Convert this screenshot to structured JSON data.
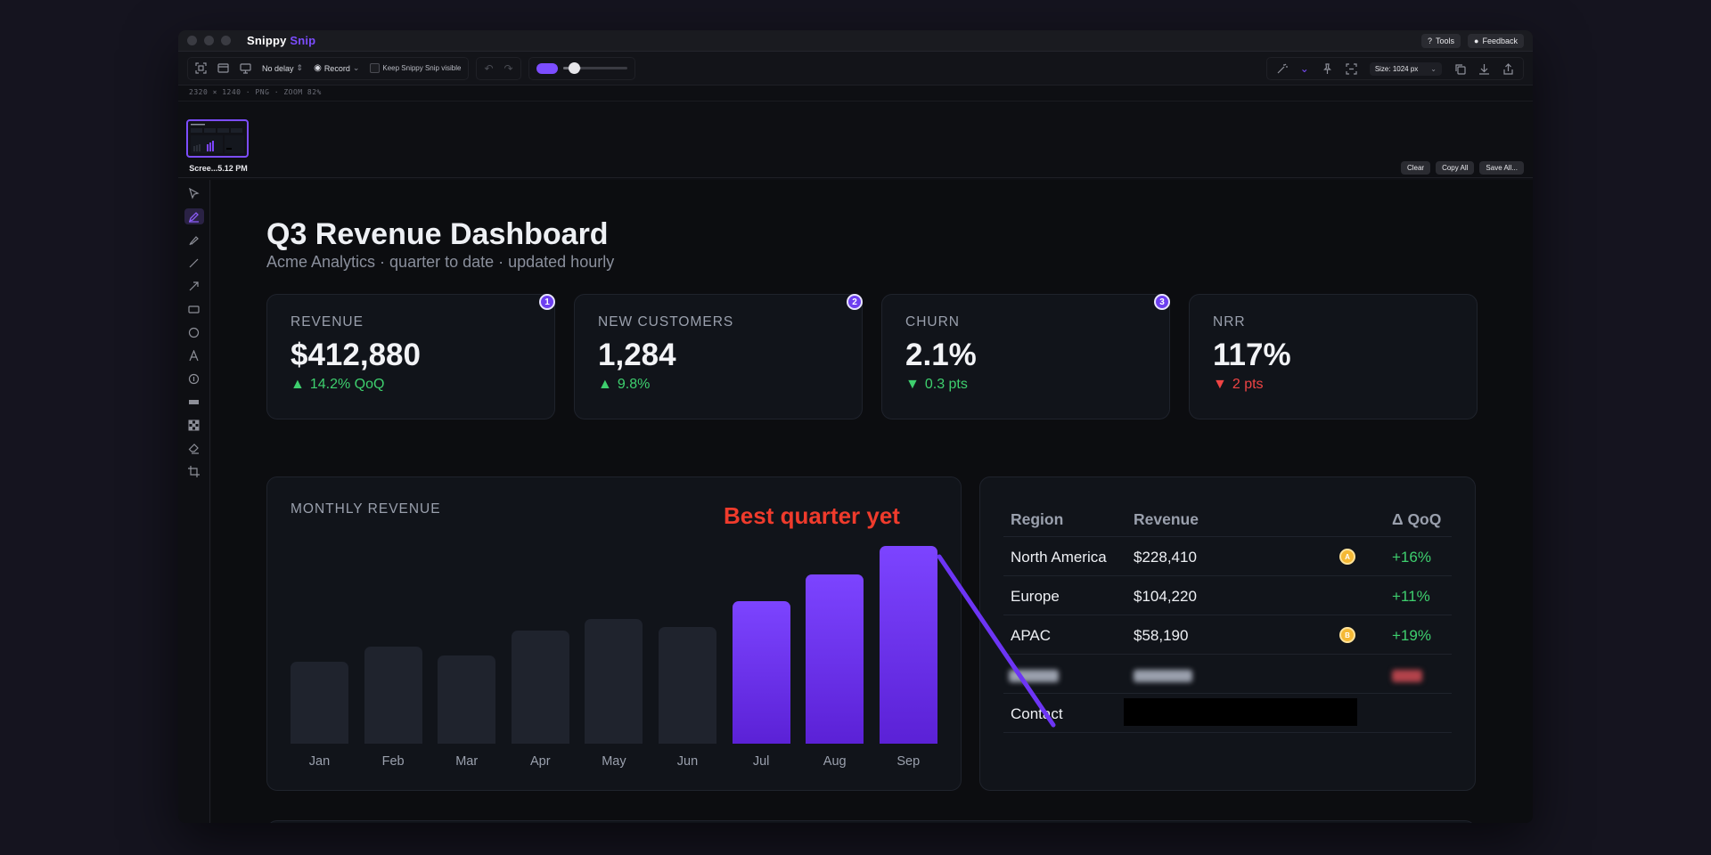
{
  "app": {
    "title_main": "Snippy",
    "title_accent": "Snip",
    "tools_label": "Tools",
    "feedback_label": "Feedback"
  },
  "toolbar": {
    "delay_label": "No delay",
    "record_label": "Record",
    "keep_visible_label": "Keep Snippy Snip visible",
    "size_label": "Size: 1024 px"
  },
  "infobar": {
    "text": "2320 × 1240   ·   PNG   ·   ZOOM 82%"
  },
  "thumbstrip": {
    "caption": "Scree...5.12 PM",
    "clear_label": "Clear",
    "copy_all_label": "Copy All",
    "save_all_label": "Save All..."
  },
  "dashboard": {
    "title": "Q3 Revenue Dashboard",
    "subtitle": "Acme Analytics · quarter to date · updated hourly",
    "kpis": [
      {
        "label": "REVENUE",
        "value": "$412,880",
        "delta": "14.2% QoQ",
        "direction": "up",
        "badge": "1"
      },
      {
        "label": "NEW CUSTOMERS",
        "value": "1,284",
        "delta": "9.8%",
        "direction": "up",
        "badge": "2"
      },
      {
        "label": "CHURN",
        "value": "2.1%",
        "delta": "0.3 pts",
        "direction": "down-good",
        "badge": "3"
      },
      {
        "label": "NRR",
        "value": "117%",
        "delta": "2 pts",
        "direction": "down-bad",
        "badge": ""
      }
    ],
    "chart_title": "MONTHLY REVENUE",
    "annotation": "Best quarter yet",
    "table": {
      "headers": [
        "Region",
        "Revenue",
        "Δ QoQ"
      ],
      "rows": [
        {
          "region": "North America",
          "revenue": "$228,410",
          "delta": "+16%",
          "marker": "A"
        },
        {
          "region": "Europe",
          "revenue": "$104,220",
          "delta": "+11%",
          "marker": ""
        },
        {
          "region": "APAC",
          "revenue": "$58,190",
          "delta": "+19%",
          "marker": "B"
        }
      ],
      "contact_label": "Contact"
    }
  },
  "chart_data": {
    "type": "bar",
    "categories": [
      "Jan",
      "Feb",
      "Mar",
      "Apr",
      "May",
      "Jun",
      "Jul",
      "Aug",
      "Sep"
    ],
    "values": [
      92,
      109,
      99,
      127,
      140,
      131,
      160,
      190,
      222
    ],
    "highlighted": [
      "Jul",
      "Aug",
      "Sep"
    ],
    "title": "MONTHLY REVENUE",
    "xlabel": "",
    "ylabel": "",
    "grid": false,
    "colors": {
      "muted": "#1f232d",
      "highlight": "#6d35f5"
    }
  },
  "colors": {
    "accent": "#7c4dff",
    "positive": "#3ecf6e",
    "negative": "#ef4444",
    "annotation": "#ef3b2c",
    "marker": "#f5b935"
  }
}
